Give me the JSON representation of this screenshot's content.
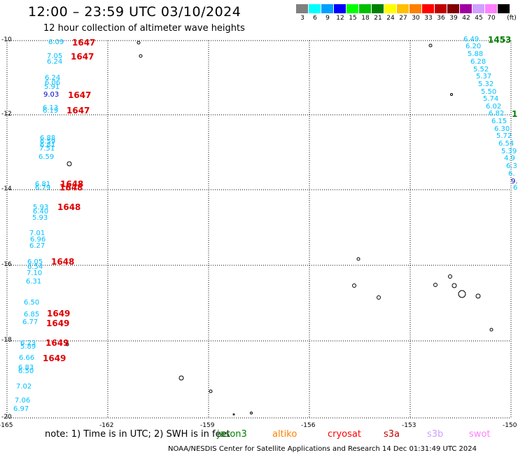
{
  "header": {
    "title": "12:00 – 23:59 UTC 03/10/2024",
    "subtitle": "12 hour collection of altimeter wave heights"
  },
  "colorbar": {
    "unit": "(ft)",
    "bins": [
      {
        "label": "3",
        "color": "#808080"
      },
      {
        "label": "6",
        "color": "#00ffff"
      },
      {
        "label": "9",
        "color": "#00a0ff"
      },
      {
        "label": "12",
        "color": "#0000ff"
      },
      {
        "label": "15",
        "color": "#00ff00"
      },
      {
        "label": "18",
        "color": "#00c000"
      },
      {
        "label": "21",
        "color": "#008000"
      },
      {
        "label": "24",
        "color": "#ffff00"
      },
      {
        "label": "27",
        "color": "#ffc000"
      },
      {
        "label": "30",
        "color": "#ff8000"
      },
      {
        "label": "33",
        "color": "#ff0000"
      },
      {
        "label": "36",
        "color": "#c00000"
      },
      {
        "label": "39",
        "color": "#800000"
      },
      {
        "label": "42",
        "color": "#a000a0"
      },
      {
        "label": "45",
        "color": "#d0a0ff"
      },
      {
        "label": "70",
        "color": "#ff80ff"
      },
      {
        "label": "",
        "color": "#000000"
      }
    ]
  },
  "axes": {
    "lat_labels": [
      "-10",
      "-12",
      "-14",
      "-16",
      "-18",
      "-20"
    ],
    "lon_labels": [
      "-165",
      "-162",
      "-159",
      "-156",
      "-153",
      "-150"
    ]
  },
  "tracks": {
    "left": [
      {
        "v": "6.09",
        "c": "#00c0ff"
      },
      {
        "v": "7.05",
        "c": "#00c0ff"
      },
      {
        "v": "6.24",
        "c": "#00c0ff"
      },
      {
        "v": "6.24",
        "c": "#00c0ff"
      },
      {
        "v": "6.06",
        "c": "#00c0ff"
      },
      {
        "v": "5.91",
        "c": "#00c0ff"
      },
      {
        "v": "9.03",
        "c": "#0000c0"
      },
      {
        "v": "6.13",
        "c": "#00c0ff"
      },
      {
        "v": "6.19",
        "c": "#00c0ff"
      },
      {
        "v": "6.88",
        "c": "#00c0ff"
      },
      {
        "v": "6.59",
        "c": "#00c0ff"
      },
      {
        "v": "6.81",
        "c": "#00c0ff"
      },
      {
        "v": "7.51",
        "c": "#00c0ff"
      },
      {
        "v": "6.59",
        "c": "#00c0ff"
      },
      {
        "v": "6.81",
        "c": "#00c0ff"
      },
      {
        "v": "6.79",
        "c": "#00c0ff"
      },
      {
        "v": "5.93",
        "c": "#00c0ff"
      },
      {
        "v": "6.40",
        "c": "#00c0ff"
      },
      {
        "v": "5.93",
        "c": "#00c0ff"
      },
      {
        "v": "7.01",
        "c": "#00c0ff"
      },
      {
        "v": "6.96",
        "c": "#00c0ff"
      },
      {
        "v": "6.27",
        "c": "#00c0ff"
      },
      {
        "v": "6.05",
        "c": "#00c0ff"
      },
      {
        "v": "6.54",
        "c": "#00c0ff"
      },
      {
        "v": "7.10",
        "c": "#00c0ff"
      },
      {
        "v": "6.31",
        "c": "#00c0ff"
      },
      {
        "v": "6.50",
        "c": "#00c0ff"
      },
      {
        "v": "6.85",
        "c": "#00c0ff"
      },
      {
        "v": "6.77",
        "c": "#00c0ff"
      },
      {
        "v": "6.23",
        "c": "#00c0ff"
      },
      {
        "v": "5.89",
        "c": "#00c0ff"
      },
      {
        "v": "6.66",
        "c": "#00c0ff"
      },
      {
        "v": "6.83",
        "c": "#00c0ff"
      },
      {
        "v": "6.50",
        "c": "#00c0ff"
      },
      {
        "v": "7.02",
        "c": "#00c0ff"
      },
      {
        "v": "7.06",
        "c": "#00c0ff"
      },
      {
        "v": "6.97",
        "c": "#00c0ff"
      }
    ],
    "left_times": [
      "1647",
      "1647",
      "1647",
      "1647",
      "1648",
      "1648",
      "1648",
      "1648",
      "1649",
      "1649",
      "1649",
      "1649"
    ],
    "right": [
      {
        "v": "6.49",
        "c": "#00c0ff"
      },
      {
        "v": "6.20",
        "c": "#00c0ff"
      },
      {
        "v": "5.88",
        "c": "#00c0ff"
      },
      {
        "v": "6.28",
        "c": "#00c0ff"
      },
      {
        "v": "5.52",
        "c": "#00c0ff"
      },
      {
        "v": "5.37",
        "c": "#00c0ff"
      },
      {
        "v": "5.32",
        "c": "#00c0ff"
      },
      {
        "v": "5.50",
        "c": "#00c0ff"
      },
      {
        "v": "5.74",
        "c": "#00c0ff"
      },
      {
        "v": "6.02",
        "c": "#00c0ff"
      },
      {
        "v": "6.82",
        "c": "#00c0ff"
      },
      {
        "v": "6.15",
        "c": "#00c0ff"
      },
      {
        "v": "6.30",
        "c": "#00c0ff"
      },
      {
        "v": "5.72",
        "c": "#00c0ff"
      },
      {
        "v": "6.54",
        "c": "#00c0ff"
      },
      {
        "v": "5.39",
        "c": "#00c0ff"
      },
      {
        "v": "4.9",
        "c": "#00c0ff"
      },
      {
        "v": "6.3",
        "c": "#00c0ff"
      },
      {
        "v": "6.",
        "c": "#00c0ff"
      },
      {
        "v": "9.",
        "c": "#0000c0"
      },
      {
        "v": "6",
        "c": "#00c0ff"
      }
    ],
    "right_times": [
      {
        "t": "1453",
        "c": "#008000"
      },
      {
        "t": "1",
        "c": "#008000"
      }
    ]
  },
  "legend": {
    "note": "note:  1) Time is in UTC; 2) SWH is in feet",
    "satellites": [
      {
        "name": "jason3",
        "color": "#008000"
      },
      {
        "name": "altiko",
        "color": "#ff8000"
      },
      {
        "name": "cryosat",
        "color": "#ff0000"
      },
      {
        "name": "s3a",
        "color": "#c00000"
      },
      {
        "name": "s3b",
        "color": "#d0a0ff"
      },
      {
        "name": "swot",
        "color": "#ff80ff"
      }
    ]
  },
  "footer": "NOAA/NESDIS Center for Satellite Applications and Research    14 Dec 01:31:49 UTC 2024"
}
